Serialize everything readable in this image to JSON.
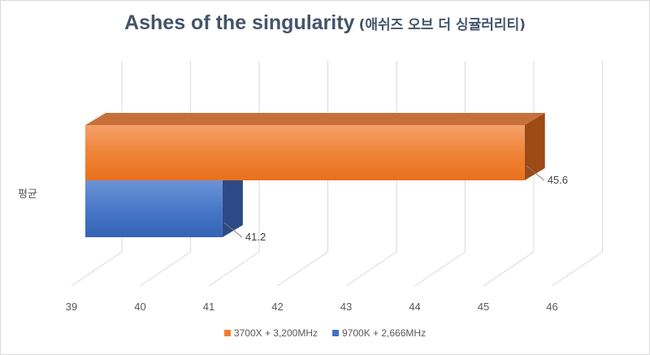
{
  "chart_data": {
    "type": "bar",
    "orientation": "horizontal",
    "style": "3d",
    "title": "Ashes of the singularity",
    "subtitle": "(애쉬즈 오브 더 싱귤러리티)",
    "categories": [
      "평균"
    ],
    "series": [
      {
        "name": "3700X + 3,200MHz",
        "values": [
          45.6
        ],
        "color": "#ed7d31"
      },
      {
        "name": "9700K + 2,666MHz",
        "values": [
          41.2
        ],
        "color": "#4472c4"
      }
    ],
    "xlim": [
      39,
      46
    ],
    "xticks": [
      "39",
      "40",
      "41",
      "42",
      "43",
      "44",
      "45",
      "46"
    ],
    "data_labels": [
      "45.6",
      "41.2"
    ],
    "grid": true,
    "legend": "bottom"
  }
}
